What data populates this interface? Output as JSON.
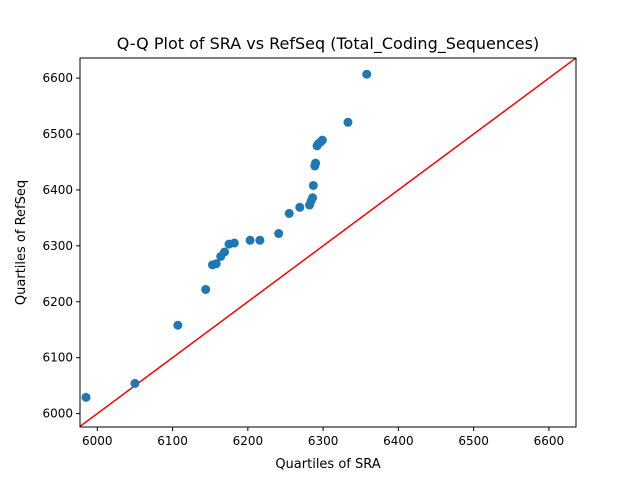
{
  "chart_data": {
    "type": "scatter",
    "title": "Q-Q Plot of SRA vs RefSeq (Total_Coding_Sequences)",
    "xlabel": "Quartiles of SRA",
    "ylabel": "Quartiles of RefSeq",
    "xlim": [
      5977,
      6636
    ],
    "ylim": [
      5976,
      6636
    ],
    "xticks": [
      6000,
      6100,
      6200,
      6300,
      6400,
      6500,
      6600
    ],
    "yticks": [
      6000,
      6100,
      6200,
      6300,
      6400,
      6500,
      6600
    ],
    "grid": false,
    "legend": "none",
    "colors": {
      "points": "#1f77b4",
      "reference_line": "#ff0000"
    },
    "reference_line": {
      "from": [
        5977,
        5977
      ],
      "to": [
        6636,
        6636
      ]
    },
    "points": [
      {
        "x": 5985,
        "y": 6029
      },
      {
        "x": 6050,
        "y": 6054
      },
      {
        "x": 6107,
        "y": 6158
      },
      {
        "x": 6144,
        "y": 6222
      },
      {
        "x": 6153,
        "y": 6266
      },
      {
        "x": 6158,
        "y": 6268
      },
      {
        "x": 6164,
        "y": 6281
      },
      {
        "x": 6169,
        "y": 6289
      },
      {
        "x": 6175,
        "y": 6303
      },
      {
        "x": 6182,
        "y": 6305
      },
      {
        "x": 6203,
        "y": 6310
      },
      {
        "x": 6216,
        "y": 6310
      },
      {
        "x": 6241,
        "y": 6322
      },
      {
        "x": 6255,
        "y": 6358
      },
      {
        "x": 6269,
        "y": 6369
      },
      {
        "x": 6282,
        "y": 6373
      },
      {
        "x": 6284,
        "y": 6380
      },
      {
        "x": 6286,
        "y": 6386
      },
      {
        "x": 6287,
        "y": 6408
      },
      {
        "x": 6289,
        "y": 6443
      },
      {
        "x": 6290,
        "y": 6448
      },
      {
        "x": 6292,
        "y": 6479
      },
      {
        "x": 6294,
        "y": 6483
      },
      {
        "x": 6297,
        "y": 6486
      },
      {
        "x": 6299,
        "y": 6489
      },
      {
        "x": 6333,
        "y": 6521
      },
      {
        "x": 6358,
        "y": 6607
      }
    ]
  }
}
